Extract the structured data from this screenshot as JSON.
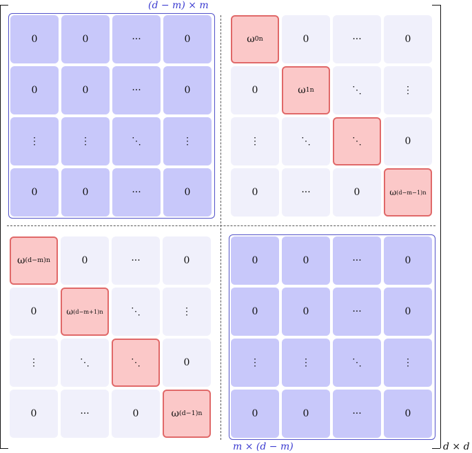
{
  "labels": {
    "top": "(d − m) × m",
    "bottom": "m × (d − m)",
    "size": "d × d"
  },
  "colors": {
    "zero_block": "#c8c8fa",
    "light_cell": "#f0f0fb",
    "diagonal_fill": "#fbc8c8",
    "diagonal_border": "#e06868",
    "frame": "#5050c8"
  },
  "quadrants": {
    "top_left": {
      "style": "blue",
      "cells": [
        [
          "0",
          "0",
          "···",
          "0"
        ],
        [
          "0",
          "0",
          "···",
          "0"
        ],
        [
          "⋮",
          "⋮",
          "⋱",
          "⋮"
        ],
        [
          "0",
          "0",
          "···",
          "0"
        ]
      ]
    },
    "top_right": {
      "style": "light",
      "cells": [
        [
          "ω^0n",
          "0",
          "···",
          "0"
        ],
        [
          "0",
          "ω^1n",
          "⋱",
          "⋮"
        ],
        [
          "⋮",
          "⋱",
          "⋱",
          "0"
        ],
        [
          "0",
          "···",
          "0",
          "ω^(d−m−1)n"
        ]
      ]
    },
    "bottom_left": {
      "style": "light",
      "cells": [
        [
          "ω^(d−m)n",
          "0",
          "···",
          "0"
        ],
        [
          "0",
          "ω^(d−m+1)n",
          "⋱",
          "⋮"
        ],
        [
          "⋮",
          "⋱",
          "⋱",
          "0"
        ],
        [
          "0",
          "···",
          "0",
          "ω^(d−1)n"
        ]
      ]
    },
    "bottom_right": {
      "style": "blue",
      "cells": [
        [
          "0",
          "0",
          "···",
          "0"
        ],
        [
          "0",
          "0",
          "···",
          "0"
        ],
        [
          "⋮",
          "⋮",
          "⋱",
          "⋮"
        ],
        [
          "0",
          "0",
          "···",
          "0"
        ]
      ]
    }
  }
}
